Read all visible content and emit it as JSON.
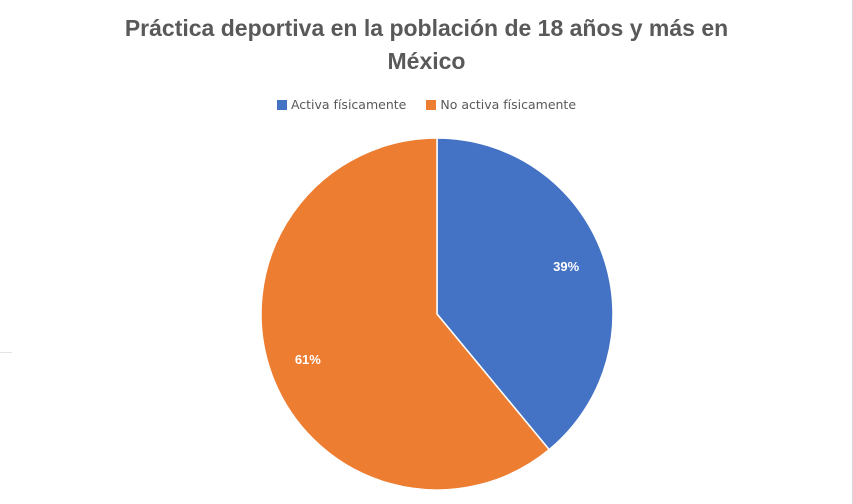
{
  "chart_data": {
    "type": "pie",
    "title_line1": "Práctica deportiva en la población de 18 años y más en",
    "title_line2": "México",
    "categories": [
      "Activa físicamente",
      "No activa físicamente"
    ],
    "values": [
      39,
      61
    ],
    "data_labels": [
      "39%",
      "61%"
    ],
    "colors": [
      "#4472C4",
      "#ED7D31"
    ],
    "legend_position": "top"
  }
}
